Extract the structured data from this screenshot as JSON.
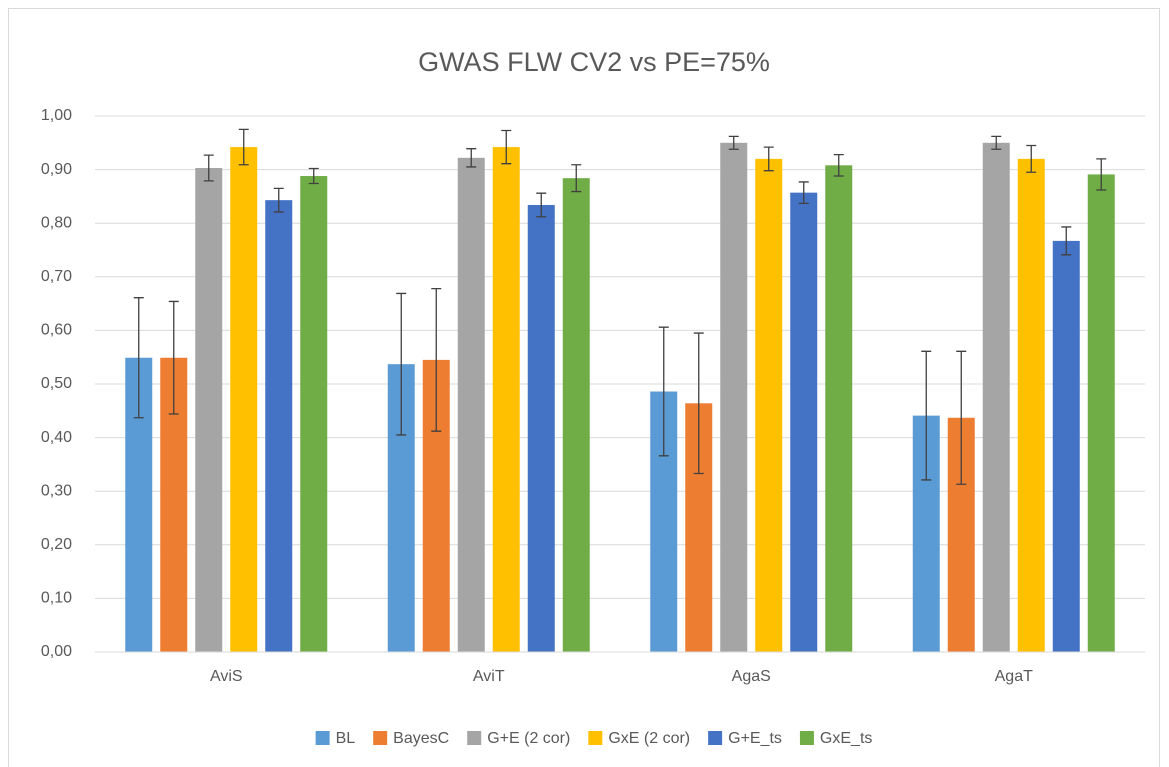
{
  "chart_data": {
    "type": "bar",
    "title": "GWAS FLW CV2 vs PE=75%",
    "categories": [
      "AviS",
      "AviT",
      "AgaS",
      "AgaT"
    ],
    "series": [
      {
        "name": "BL",
        "color": "#5b9bd5",
        "values": [
          0.549,
          0.537,
          0.486,
          0.441
        ],
        "errors": [
          0.112,
          0.132,
          0.12,
          0.12
        ]
      },
      {
        "name": "BayesC",
        "color": "#ed7d31",
        "values": [
          0.549,
          0.545,
          0.464,
          0.437
        ],
        "errors": [
          0.105,
          0.133,
          0.131,
          0.124
        ]
      },
      {
        "name": "G+E (2 cor)",
        "color": "#a5a5a5",
        "values": [
          0.903,
          0.922,
          0.95,
          0.95
        ],
        "errors": [
          0.024,
          0.017,
          0.012,
          0.012
        ]
      },
      {
        "name": "GxE (2 cor)",
        "color": "#ffc000",
        "values": [
          0.942,
          0.942,
          0.92,
          0.92
        ],
        "errors": [
          0.033,
          0.031,
          0.022,
          0.025
        ]
      },
      {
        "name": "G+E_ts",
        "color": "#4472c4",
        "values": [
          0.843,
          0.834,
          0.857,
          0.767
        ],
        "errors": [
          0.022,
          0.022,
          0.02,
          0.026
        ]
      },
      {
        "name": "GxE_ts",
        "color": "#70ad47",
        "values": [
          0.888,
          0.884,
          0.908,
          0.891
        ],
        "errors": [
          0.014,
          0.025,
          0.02,
          0.029
        ]
      }
    ],
    "ylim": [
      0,
      1
    ],
    "yticks": [
      {
        "value": 0,
        "label": "0,00"
      },
      {
        "value": 0.1,
        "label": "0,10"
      },
      {
        "value": 0.2,
        "label": "0,20"
      },
      {
        "value": 0.3,
        "label": "0,30"
      },
      {
        "value": 0.4,
        "label": "0,40"
      },
      {
        "value": 0.5,
        "label": "0,50"
      },
      {
        "value": 0.6,
        "label": "0,60"
      },
      {
        "value": 0.7,
        "label": "0,70"
      },
      {
        "value": 0.8,
        "label": "0,80"
      },
      {
        "value": 0.9,
        "label": "0,90"
      },
      {
        "value": 1,
        "label": "1,00"
      }
    ],
    "grid": true,
    "legend": "bottom"
  }
}
